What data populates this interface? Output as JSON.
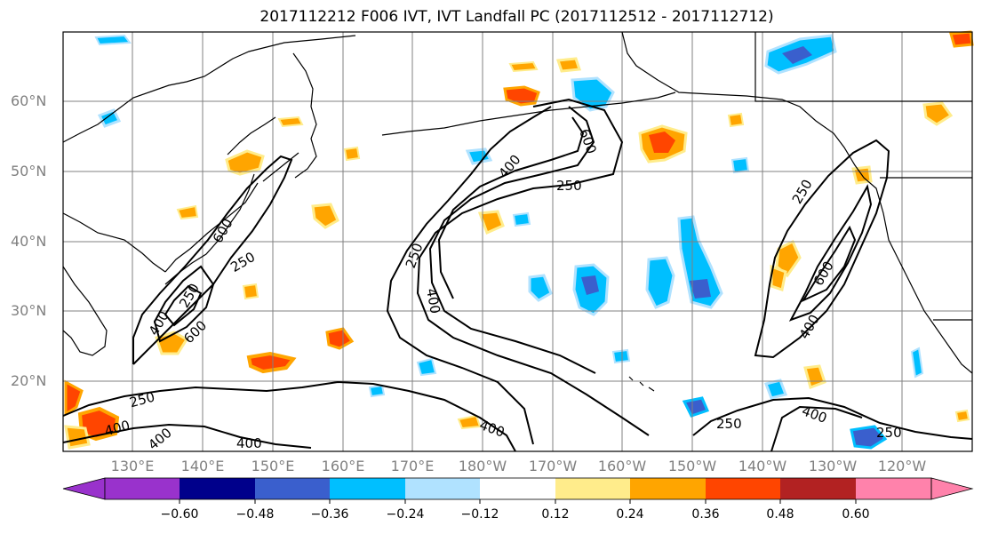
{
  "title": "2017112212 F006 IVT, IVT Landfall PC (2017112512 - 2017112712)",
  "latitude_labels": [
    "60°N",
    "50°N",
    "40°N",
    "30°N",
    "20°N"
  ],
  "longitude_labels": [
    "130°E",
    "140°E",
    "150°E",
    "160°E",
    "170°E",
    "180°W",
    "170°W",
    "160°W",
    "150°W",
    "140°W",
    "130°W",
    "120°W"
  ],
  "contour_labels": [
    "600",
    "250",
    "400",
    "250",
    "400",
    "600",
    "400",
    "250",
    "250",
    "600",
    "400",
    "250",
    "400",
    "400",
    "250",
    "250",
    "400",
    "250",
    "400",
    "600",
    "400"
  ],
  "colorbar": {
    "tick_labels": [
      "−0.60",
      "−0.48",
      "−0.36",
      "−0.24",
      "−0.12",
      "0.12",
      "0.24",
      "0.36",
      "0.48",
      "0.60"
    ],
    "colors": [
      "#9932CC",
      "#00008B",
      "#3A5FCD",
      "#00BFFF",
      "#B0E2FF",
      "#FFFFFF",
      "#FFEC8B",
      "#FFA500",
      "#FF4500",
      "#B22222",
      "#FF82AB"
    ]
  },
  "colors": {
    "grid": "#808080",
    "coast": "#000000",
    "contour": "#000000"
  }
}
